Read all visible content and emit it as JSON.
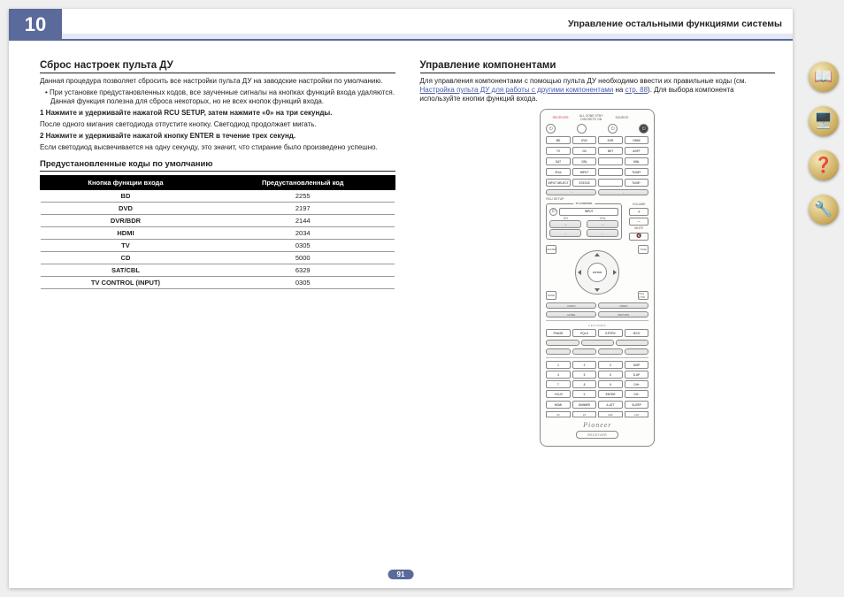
{
  "chapter": "10",
  "header": "Управление остальными функциями системы",
  "page_number": "91",
  "left": {
    "h2": "Сброс настроек пульта ДУ",
    "intro": "Данная процедура позволяет сбросить все настройки пульта ДУ на заводские настройки по умолчанию.",
    "bullet1": "При установке предустановленных кодов, все заученные сигналы на кнопках функций входа удаляются. Данная функция полезна для сброса некоторых, но не всех кнопок функций входа.",
    "step1_bold": "1   Нажмите и удерживайте нажатой RCU SETUP, затем нажмите «0» на три секунды.",
    "step1_text": "После одного мигания светодиода отпустите кнопку. Светодиод продолжает мигать.",
    "step2_bold": "2   Нажмите и удерживайте нажатой кнопку ENTER в течение трех секунд.",
    "step2_text": "Если светодиод высвечивается на одну секунду, это значит, что стирание было произведено успешно.",
    "h3": "Предустановленные коды по умолчанию",
    "table": {
      "th1": "Кнопка функции входа",
      "th2": "Предустановленный код",
      "rows": [
        [
          "BD",
          "2255"
        ],
        [
          "DVD",
          "2197"
        ],
        [
          "DVR/BDR",
          "2144"
        ],
        [
          "HDMI",
          "2034"
        ],
        [
          "TV",
          "0305"
        ],
        [
          "CD",
          "5000"
        ],
        [
          "SAT/CBL",
          "6329"
        ],
        [
          "TV CONTROL (INPUT)",
          "0305"
        ]
      ]
    }
  },
  "right": {
    "h2": "Управление компонентами",
    "p1_a": "Для управления компонентами с помощью пульта ДУ необходимо ввести их правильные коды (см. ",
    "link": "Настройка пульта ДУ для работы с другими компонентами",
    "p1_b": " на ",
    "pg": "стр. 88",
    "p1_c": "). Для выбора компонента используйте кнопки функций входа."
  },
  "remote": {
    "receiver_lbl": "RECEIVER",
    "zone_lbl": "ALL ZONE STBY\nDISCRETE ON",
    "source_lbl": "SOURCE",
    "row1": [
      "BD",
      "DVD",
      "DVR",
      "HDMI"
    ],
    "row2": [
      "TV",
      "CD",
      "NET",
      "ADPT"
    ],
    "row3": [
      "SAT",
      "CBL",
      "",
      "MNL"
    ],
    "row4": [
      "iPod",
      "INPUT",
      "",
      "TUNE+"
    ],
    "row5": [
      "INPUT SELECT",
      "STATUS",
      "",
      "TUNE−"
    ],
    "rcu": "RCU SETUP",
    "tv_inp": "INPUT",
    "tv_ch": "CH",
    "tv_vol": "VOL",
    "vol_lbl": "VOLUME",
    "mute": "MUTE",
    "c_tl": "MASTER",
    "c_tr": "TUNE",
    "c_bl": "BAND",
    "c_br": "iPod CTRL",
    "enter": "ENTER",
    "below_l": "AUDIO",
    "below_r": "VIDEO",
    "ret_l": "HOME",
    "ret_r": "RETURN",
    "features": "FEATURES",
    "feat": [
      "PHASE",
      "PQLS",
      "S.RTRV",
      "iECO"
    ],
    "nums": [
      "1",
      "2",
      "3",
      "DISP",
      "4",
      "5",
      "6",
      "D.UP",
      "7",
      "8",
      "9",
      "CH+",
      "+/CLR",
      "0",
      "ENTER",
      "CH−"
    ],
    "btm": [
      "HDMI",
      "DIMMER",
      "A.ATT",
      "SLEEP"
    ],
    "zones": [
      "Z2",
      "Z3",
      "HZ2",
      "LAN"
    ],
    "brand": "Pioneer",
    "receiver_box": "RECEIVER"
  },
  "side_icons": [
    "📖",
    "🖥️",
    "❓",
    "🔧"
  ]
}
